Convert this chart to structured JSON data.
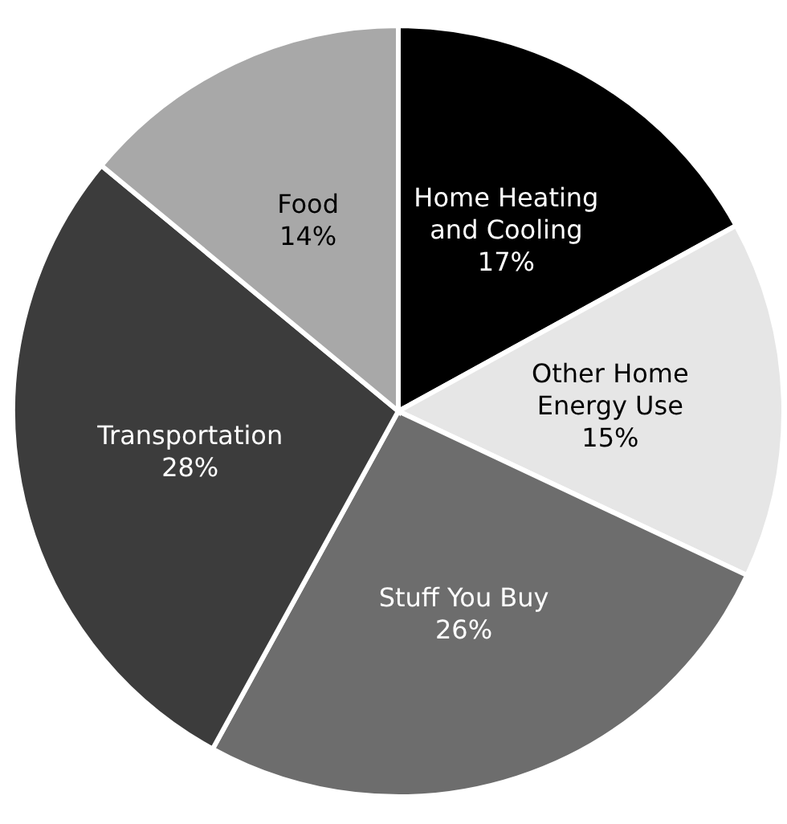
{
  "chart_data": {
    "type": "pie",
    "categories": [
      "Home Heating and Cooling",
      "Other Home Energy Use",
      "Stuff You Buy",
      "Transportation",
      "Food"
    ],
    "values": [
      17,
      15,
      26,
      28,
      14
    ],
    "value_labels": [
      "17%",
      "15%",
      "26%",
      "28%",
      "14%"
    ],
    "colors": [
      "#000000",
      "#e6e6e6",
      "#6d6d6d",
      "#3c3c3c",
      "#a8a8a8"
    ]
  }
}
